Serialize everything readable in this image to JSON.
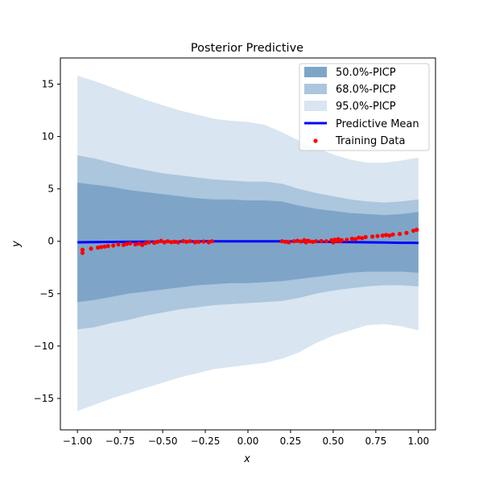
{
  "chart_data": {
    "type": "area",
    "title": "Posterior Predictive",
    "xlabel": "x",
    "ylabel": "y",
    "xlim": [
      -1.1,
      1.1
    ],
    "ylim": [
      -18,
      17.5
    ],
    "xticks": [
      -1.0,
      -0.75,
      -0.5,
      -0.25,
      0.0,
      0.25,
      0.5,
      0.75,
      1.0
    ],
    "xtick_labels": [
      "−1.00",
      "−0.75",
      "−0.50",
      "−0.25",
      "0.00",
      "0.25",
      "0.50",
      "0.75",
      "1.00"
    ],
    "yticks": [
      -15,
      -10,
      -5,
      0,
      5,
      10,
      15
    ],
    "ytick_labels": [
      "−15",
      "−10",
      "−5",
      "0",
      "5",
      "10",
      "15"
    ],
    "grid": false,
    "legend_position": "top-right",
    "colors": {
      "band_50": "#7ea5c8",
      "band_68": "#abc6dd",
      "band_95": "#d9e5f0",
      "mean": "#0000ff",
      "points": "#ff0000"
    },
    "x": [
      -1.0,
      -0.9,
      -0.8,
      -0.7,
      -0.6,
      -0.5,
      -0.4,
      -0.3,
      -0.2,
      -0.1,
      0.0,
      0.1,
      0.2,
      0.3,
      0.4,
      0.5,
      0.6,
      0.7,
      0.8,
      0.9,
      1.0
    ],
    "series": [
      {
        "name": "95.0%-PICP",
        "lower": [
          -16.2,
          -15.6,
          -15.0,
          -14.5,
          -14.0,
          -13.5,
          -13.0,
          -12.6,
          -12.2,
          -12.0,
          -11.8,
          -11.6,
          -11.2,
          -10.6,
          -9.7,
          -9.0,
          -8.5,
          -8.0,
          -7.9,
          -8.1,
          -8.5
        ],
        "upper": [
          15.8,
          15.3,
          14.7,
          14.1,
          13.5,
          13.0,
          12.5,
          12.1,
          11.7,
          11.5,
          11.4,
          11.1,
          10.4,
          9.6,
          8.9,
          8.3,
          7.8,
          7.5,
          7.5,
          7.7,
          8.0
        ]
      },
      {
        "name": "68.0%-PICP",
        "lower": [
          -8.4,
          -8.2,
          -7.8,
          -7.5,
          -7.1,
          -6.8,
          -6.5,
          -6.3,
          -6.1,
          -6.0,
          -5.9,
          -5.8,
          -5.7,
          -5.4,
          -5.0,
          -4.7,
          -4.5,
          -4.3,
          -4.2,
          -4.2,
          -4.3
        ],
        "upper": [
          8.2,
          7.9,
          7.5,
          7.1,
          6.8,
          6.5,
          6.3,
          6.1,
          5.9,
          5.8,
          5.7,
          5.7,
          5.5,
          5.0,
          4.6,
          4.3,
          4.0,
          3.8,
          3.7,
          3.8,
          4.0
        ]
      },
      {
        "name": "50.0%-PICP",
        "lower": [
          -5.8,
          -5.6,
          -5.3,
          -5.0,
          -4.8,
          -4.6,
          -4.4,
          -4.2,
          -4.1,
          -4.0,
          -4.0,
          -3.9,
          -3.8,
          -3.6,
          -3.4,
          -3.2,
          -3.0,
          -2.9,
          -2.9,
          -2.9,
          -3.0
        ],
        "upper": [
          5.6,
          5.4,
          5.2,
          4.9,
          4.7,
          4.5,
          4.3,
          4.1,
          4.0,
          4.0,
          3.9,
          3.9,
          3.8,
          3.4,
          3.1,
          2.9,
          2.7,
          2.6,
          2.5,
          2.6,
          2.8
        ]
      },
      {
        "name": "Predictive Mean",
        "values": [
          -0.1,
          -0.08,
          -0.06,
          -0.05,
          -0.04,
          -0.03,
          -0.02,
          -0.01,
          0.0,
          0.0,
          0.0,
          0.0,
          0.0,
          -0.02,
          -0.04,
          -0.06,
          -0.08,
          -0.1,
          -0.12,
          -0.14,
          -0.15
        ]
      },
      {
        "name": "Training Data",
        "points": [
          [
            -0.97,
            -1.1
          ],
          [
            -0.97,
            -0.8
          ],
          [
            -0.92,
            -0.7
          ],
          [
            -0.88,
            -0.6
          ],
          [
            -0.86,
            -0.55
          ],
          [
            -0.84,
            -0.5
          ],
          [
            -0.82,
            -0.45
          ],
          [
            -0.79,
            -0.4
          ],
          [
            -0.76,
            -0.3
          ],
          [
            -0.73,
            -0.35
          ],
          [
            -0.71,
            -0.25
          ],
          [
            -0.69,
            -0.2
          ],
          [
            -0.66,
            -0.3
          ],
          [
            -0.64,
            -0.22
          ],
          [
            -0.62,
            -0.35
          ],
          [
            -0.6,
            -0.18
          ],
          [
            -0.58,
            -0.1
          ],
          [
            -0.55,
            -0.15
          ],
          [
            -0.53,
            -0.05
          ],
          [
            -0.51,
            0.05
          ],
          [
            -0.49,
            -0.1
          ],
          [
            -0.47,
            0.0
          ],
          [
            -0.45,
            -0.08
          ],
          [
            -0.43,
            -0.05
          ],
          [
            -0.41,
            -0.1
          ],
          [
            -0.38,
            0.02
          ],
          [
            -0.36,
            -0.05
          ],
          [
            -0.34,
            0.0
          ],
          [
            -0.31,
            -0.1
          ],
          [
            -0.29,
            -0.05
          ],
          [
            -0.26,
            -0.02
          ],
          [
            -0.23,
            -0.1
          ],
          [
            -0.21,
            0.0
          ],
          [
            0.2,
            0.0
          ],
          [
            0.22,
            -0.05
          ],
          [
            0.24,
            -0.1
          ],
          [
            0.27,
            0.0
          ],
          [
            0.29,
            0.05
          ],
          [
            0.31,
            -0.02
          ],
          [
            0.33,
            0.1
          ],
          [
            0.34,
            -0.1
          ],
          [
            0.35,
            0.05
          ],
          [
            0.36,
            0.0
          ],
          [
            0.38,
            -0.05
          ],
          [
            0.4,
            0.0
          ],
          [
            0.43,
            0.02
          ],
          [
            0.46,
            0.0
          ],
          [
            0.49,
            0.1
          ],
          [
            0.5,
            -0.1
          ],
          [
            0.51,
            0.15
          ],
          [
            0.52,
            0.05
          ],
          [
            0.53,
            0.2
          ],
          [
            0.54,
            0.0
          ],
          [
            0.55,
            0.1
          ],
          [
            0.58,
            0.15
          ],
          [
            0.61,
            0.25
          ],
          [
            0.63,
            0.2
          ],
          [
            0.65,
            0.35
          ],
          [
            0.67,
            0.3
          ],
          [
            0.69,
            0.4
          ],
          [
            0.73,
            0.45
          ],
          [
            0.76,
            0.5
          ],
          [
            0.79,
            0.55
          ],
          [
            0.81,
            0.6
          ],
          [
            0.83,
            0.55
          ],
          [
            0.85,
            0.65
          ],
          [
            0.89,
            0.7
          ],
          [
            0.93,
            0.8
          ],
          [
            0.97,
            1.0
          ],
          [
            0.99,
            1.1
          ]
        ]
      }
    ]
  }
}
